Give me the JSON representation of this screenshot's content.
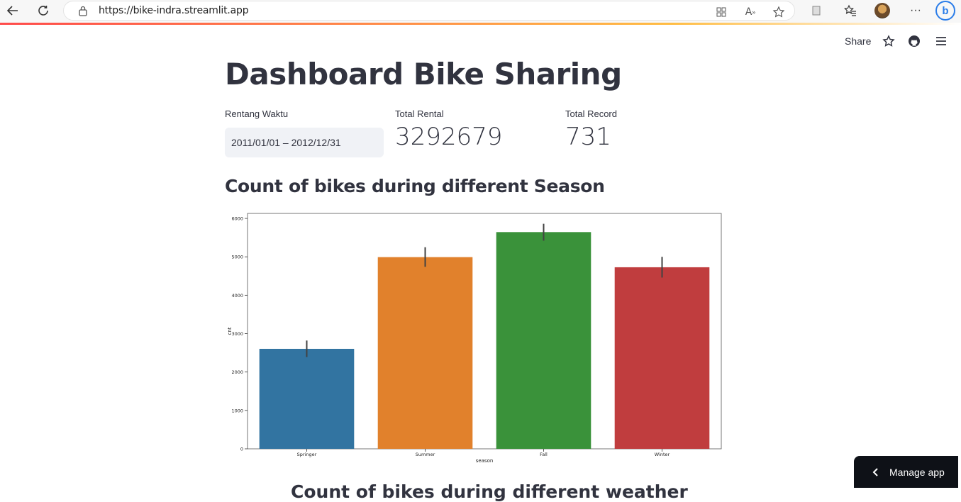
{
  "browser": {
    "url": "https://bike-indra.streamlit.app"
  },
  "app_header": {
    "share_label": "Share"
  },
  "page": {
    "title": "Dashboard Bike Sharing",
    "date_range": {
      "label": "Rentang Waktu",
      "value": "2011/01/01 – 2012/12/31"
    },
    "metrics": [
      {
        "label": "Total Rental",
        "value": "3292679"
      },
      {
        "label": "Total Record",
        "value": "731"
      }
    ],
    "section_title": "Count of bikes during different Season",
    "next_section_title": "Count of bikes during different weather"
  },
  "manage_app": {
    "label": "Manage app"
  },
  "chart_data": {
    "type": "bar",
    "categories": [
      "Springer",
      "Summer",
      "Fall",
      "Winter"
    ],
    "values": [
      2604,
      4992,
      5644,
      4728
    ],
    "error_low": [
      2390,
      4740,
      5420,
      4460
    ],
    "error_high": [
      2820,
      5250,
      5860,
      5000
    ],
    "colors": [
      "#3274a1",
      "#e1812c",
      "#3a923a",
      "#c03d3e"
    ],
    "xlabel": "season",
    "ylabel": "cnt",
    "ylim": [
      0,
      6130
    ],
    "yticks": [
      0,
      1000,
      2000,
      3000,
      4000,
      5000,
      6000
    ],
    "grid": false
  }
}
